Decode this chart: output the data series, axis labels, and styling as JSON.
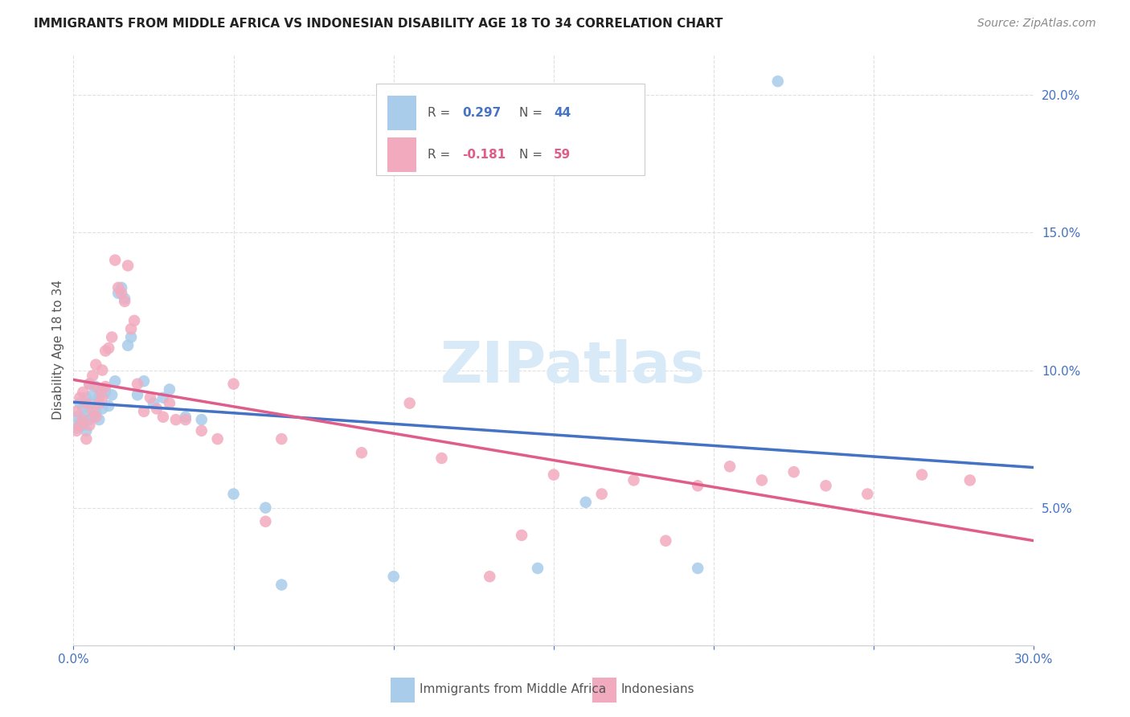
{
  "title": "IMMIGRANTS FROM MIDDLE AFRICA VS INDONESIAN DISABILITY AGE 18 TO 34 CORRELATION CHART",
  "source": "Source: ZipAtlas.com",
  "ylabel": "Disability Age 18 to 34",
  "xlim": [
    0.0,
    0.3
  ],
  "ylim": [
    0.0,
    0.215
  ],
  "blue_R": 0.297,
  "blue_N": 44,
  "pink_R": -0.181,
  "pink_N": 59,
  "blue_color": "#A8CCEA",
  "pink_color": "#F2ABBE",
  "blue_line_color": "#4472C4",
  "pink_line_color": "#E05C8A",
  "dash_line_color": "#AAAAAA",
  "grid_color": "#DDDDDD",
  "background_color": "#FFFFFF",
  "legend_label_blue": "Immigrants from Middle Africa",
  "legend_label_pink": "Indonesians",
  "blue_points_x": [
    0.001,
    0.001,
    0.002,
    0.002,
    0.003,
    0.003,
    0.004,
    0.004,
    0.004,
    0.005,
    0.005,
    0.005,
    0.006,
    0.006,
    0.007,
    0.007,
    0.008,
    0.008,
    0.009,
    0.009,
    0.01,
    0.011,
    0.012,
    0.013,
    0.014,
    0.015,
    0.016,
    0.017,
    0.018,
    0.02,
    0.022,
    0.025,
    0.028,
    0.03,
    0.035,
    0.04,
    0.05,
    0.06,
    0.065,
    0.1,
    0.145,
    0.16,
    0.195,
    0.22
  ],
  "blue_points_y": [
    0.079,
    0.083,
    0.081,
    0.088,
    0.08,
    0.086,
    0.078,
    0.084,
    0.09,
    0.082,
    0.088,
    0.095,
    0.083,
    0.091,
    0.085,
    0.094,
    0.082,
    0.09,
    0.086,
    0.093,
    0.092,
    0.087,
    0.091,
    0.096,
    0.128,
    0.13,
    0.126,
    0.109,
    0.112,
    0.091,
    0.096,
    0.088,
    0.09,
    0.093,
    0.083,
    0.082,
    0.055,
    0.05,
    0.022,
    0.025,
    0.028,
    0.052,
    0.028,
    0.205
  ],
  "pink_points_x": [
    0.001,
    0.001,
    0.002,
    0.002,
    0.003,
    0.003,
    0.004,
    0.004,
    0.005,
    0.005,
    0.006,
    0.006,
    0.007,
    0.007,
    0.008,
    0.008,
    0.009,
    0.009,
    0.01,
    0.01,
    0.011,
    0.012,
    0.013,
    0.014,
    0.015,
    0.016,
    0.017,
    0.018,
    0.019,
    0.02,
    0.022,
    0.024,
    0.026,
    0.028,
    0.03,
    0.032,
    0.035,
    0.04,
    0.045,
    0.05,
    0.06,
    0.065,
    0.09,
    0.105,
    0.115,
    0.13,
    0.14,
    0.15,
    0.165,
    0.175,
    0.185,
    0.195,
    0.205,
    0.215,
    0.225,
    0.235,
    0.248,
    0.265,
    0.28
  ],
  "pink_points_y": [
    0.078,
    0.085,
    0.08,
    0.09,
    0.082,
    0.092,
    0.075,
    0.088,
    0.08,
    0.095,
    0.085,
    0.098,
    0.083,
    0.102,
    0.088,
    0.093,
    0.09,
    0.1,
    0.094,
    0.107,
    0.108,
    0.112,
    0.14,
    0.13,
    0.128,
    0.125,
    0.138,
    0.115,
    0.118,
    0.095,
    0.085,
    0.09,
    0.086,
    0.083,
    0.088,
    0.082,
    0.082,
    0.078,
    0.075,
    0.095,
    0.045,
    0.075,
    0.07,
    0.088,
    0.068,
    0.025,
    0.04,
    0.062,
    0.055,
    0.06,
    0.038,
    0.058,
    0.065,
    0.06,
    0.063,
    0.058,
    0.055,
    0.062,
    0.06
  ],
  "watermark_text": "ZIPatlas",
  "watermark_color": "#D8EAF8",
  "title_fontsize": 11,
  "source_fontsize": 10,
  "tick_fontsize": 11,
  "ylabel_fontsize": 11
}
